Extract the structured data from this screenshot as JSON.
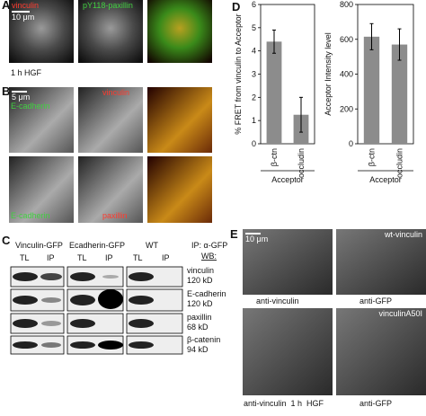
{
  "panels": {
    "a": {
      "label": "A",
      "channels": [
        "vinculin",
        "pY118-paxillin"
      ],
      "scale": "10 μm",
      "condition": "1 h HGF"
    },
    "b": {
      "label": "B",
      "scale": "5 μm",
      "top": [
        "E-cadherin",
        "vinculin"
      ],
      "bottom": [
        "E-cadherin",
        "paxillin"
      ]
    },
    "c": {
      "label": "C",
      "constructs": [
        "Vinculin-GFP",
        "Ecadherin-GFP",
        "WT"
      ],
      "lanes": [
        "TL",
        "IP",
        "TL",
        "IP",
        "TL",
        "IP"
      ],
      "ip": "IP: α-GFP",
      "wb": "WB:",
      "blots": [
        {
          "protein": "vinculin",
          "size": "120 kD"
        },
        {
          "protein": "E-cadherin",
          "size": "120 kD"
        },
        {
          "protein": "paxillin",
          "size": "68 kD"
        },
        {
          "protein": "β-catenin",
          "size": "94 kD"
        }
      ]
    },
    "d": {
      "label": "D"
    },
    "e": {
      "label": "E",
      "scale": "10 μm",
      "insets": [
        "wt-vinculin",
        "vinculinA50I"
      ],
      "captions": [
        "anti-vinculin",
        "anti-GFP",
        "anti-vinculin  1 h  HGF",
        "anti-GFP"
      ]
    }
  },
  "chart_data": [
    {
      "type": "bar",
      "ylabel": "% FRET from vinculin to Acceptor",
      "xlabel": "Acceptor",
      "categories": [
        "β-ctn",
        "occludin"
      ],
      "values": [
        4.4,
        1.25
      ],
      "errors": [
        0.5,
        0.75
      ],
      "color": "#8c8c8c",
      "ylim": [
        0,
        6
      ],
      "yticks": [
        0,
        1,
        2,
        3,
        4,
        5,
        6
      ]
    },
    {
      "type": "bar",
      "ylabel": "Acceptor Intensity level",
      "xlabel": "Acceptor",
      "categories": [
        "β-ctn",
        "occludin"
      ],
      "values": [
        615,
        570
      ],
      "errors": [
        75,
        90
      ],
      "color": "#8c8c8c",
      "ylim": [
        0,
        800
      ],
      "yticks": [
        0,
        200,
        400,
        600,
        800
      ]
    }
  ]
}
